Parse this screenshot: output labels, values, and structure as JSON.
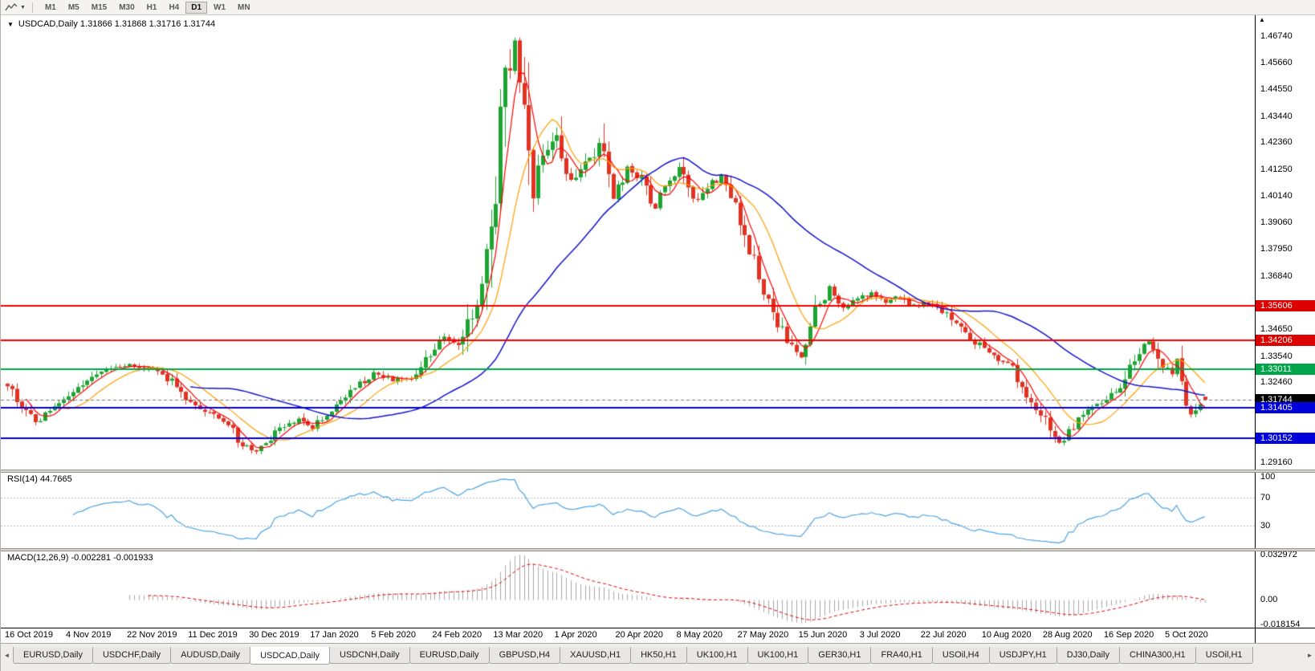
{
  "toolbar": {
    "chart_tool_icon": "line-chart-pencil",
    "dropdown_icon": "▼",
    "timeframes": [
      {
        "label": "M1",
        "active": false
      },
      {
        "label": "M5",
        "active": false
      },
      {
        "label": "M15",
        "active": false
      },
      {
        "label": "M30",
        "active": false
      },
      {
        "label": "H1",
        "active": false
      },
      {
        "label": "H4",
        "active": false
      },
      {
        "label": "D1",
        "active": true
      },
      {
        "label": "W1",
        "active": false
      },
      {
        "label": "MN",
        "active": false
      }
    ]
  },
  "chart": {
    "title_marker": "▼",
    "title": "USDCAD,Daily 1.31866 1.31868 1.31716 1.31744",
    "symbol": "USDCAD",
    "period": "Daily",
    "price_axis": {
      "scroll_marker": "▲",
      "labels": [
        "1.46740",
        "1.45660",
        "1.44550",
        "1.43440",
        "1.42360",
        "1.41250",
        "1.40140",
        "1.39060",
        "1.37950",
        "1.36840",
        "1.34650",
        "1.33540",
        "1.32460",
        "1.29160"
      ],
      "level_labels": [
        {
          "text": "1.35606",
          "bg": "#dd0000"
        },
        {
          "text": "1.34206",
          "bg": "#dd0000"
        },
        {
          "text": "1.33011",
          "bg": "#00a44a"
        },
        {
          "text": "1.31744",
          "bg": "#000000"
        },
        {
          "text": "1.31405",
          "bg": "#0000dd"
        },
        {
          "text": "1.30152",
          "bg": "#0000dd"
        }
      ]
    },
    "date_axis": [
      "16 Oct 2019",
      "4 Nov 2019",
      "22 Nov 2019",
      "11 Dec 2019",
      "30 Dec 2019",
      "17 Jan 2020",
      "5 Feb 2020",
      "24 Feb 2020",
      "13 Mar 2020",
      "1 Apr 2020",
      "20 Apr 2020",
      "8 May 2020",
      "27 May 2020",
      "15 Jun 2020",
      "3 Jul 2020",
      "22 Jul 2020",
      "10 Aug 2020",
      "28 Aug 2020",
      "16 Sep 2020",
      "5 Oct 2020"
    ]
  },
  "indicators": {
    "rsi": {
      "label": "RSI(14) 44.7665",
      "period": 14,
      "value": 44.7665,
      "scale": [
        "100",
        "70",
        "30"
      ],
      "upper_level": 70,
      "lower_level": 30,
      "line_color": "#4da3e0"
    },
    "macd": {
      "label": "MACD(12,26,9) -0.002281 -0.001933",
      "fast": 12,
      "slow": 26,
      "signal": 9,
      "main_value": -0.002281,
      "signal_value": -0.001933,
      "scale": [
        "0.032972",
        "0.00",
        "-0.018154"
      ],
      "scale_max": 0.032972,
      "scale_min": -0.018154,
      "histogram_color": "#a6a6a6",
      "signal_color": "#e00000"
    }
  },
  "chart_data": {
    "type": "candlestick",
    "symbol": "USDCAD",
    "timeframe": "Daily",
    "last_ohlc": {
      "open": 1.31866,
      "high": 1.31868,
      "low": 1.31716,
      "close": 1.31744
    },
    "current_price": 1.31744,
    "y_axis_range": [
      1.2886,
      1.476
    ],
    "candle_count": 256,
    "candles_per_date_label": 13,
    "up_color": "#1ea432",
    "down_color": "#e23222",
    "high_extreme": {
      "index": 108,
      "price": 1.4668
    },
    "low_extremes": [
      {
        "index": 52,
        "price": 1.2952
      },
      {
        "index": 224,
        "price": 1.2992
      }
    ],
    "horizontal_levels": [
      {
        "price": 1.35606,
        "color": "#f00000"
      },
      {
        "price": 1.34206,
        "color": "#f00000"
      },
      {
        "price": 1.33011,
        "color": "#00a44a"
      },
      {
        "price": 1.31405,
        "color": "#0000e0"
      },
      {
        "price": 1.30152,
        "color": "#0000e0"
      }
    ],
    "moving_averages": [
      {
        "type": "sma",
        "period": 5,
        "color": "#ff0000"
      },
      {
        "type": "sma",
        "period": 12,
        "color": "#ff9d00"
      },
      {
        "type": "sma",
        "period": 40,
        "color": "#1414cc"
      }
    ],
    "price_path": [
      [
        0,
        1.3238
      ],
      [
        3,
        1.315
      ],
      [
        6,
        1.3078
      ],
      [
        10,
        1.3145
      ],
      [
        13,
        1.3188
      ],
      [
        17,
        1.3242
      ],
      [
        21,
        1.3298
      ],
      [
        26,
        1.3322
      ],
      [
        30,
        1.3302
      ],
      [
        35,
        1.3252
      ],
      [
        39,
        1.3168
      ],
      [
        43,
        1.3122
      ],
      [
        47,
        1.3065
      ],
      [
        50,
        1.2988
      ],
      [
        52,
        1.2958
      ],
      [
        55,
        1.2988
      ],
      [
        58,
        1.3052
      ],
      [
        62,
        1.3092
      ],
      [
        65,
        1.3062
      ],
      [
        69,
        1.3128
      ],
      [
        73,
        1.3205
      ],
      [
        78,
        1.3288
      ],
      [
        82,
        1.3252
      ],
      [
        86,
        1.3268
      ],
      [
        91,
        1.3382
      ],
      [
        93,
        1.3442
      ],
      [
        96,
        1.3388
      ],
      [
        99,
        1.352
      ],
      [
        102,
        1.3745
      ],
      [
        104,
        1.4005
      ],
      [
        106,
        1.4475
      ],
      [
        108,
        1.464
      ],
      [
        110,
        1.4385
      ],
      [
        112,
        1.4025
      ],
      [
        115,
        1.4205
      ],
      [
        117,
        1.4258
      ],
      [
        120,
        1.4088
      ],
      [
        123,
        1.4158
      ],
      [
        126,
        1.4205
      ],
      [
        129,
        1.4012
      ],
      [
        132,
        1.4128
      ],
      [
        135,
        1.4082
      ],
      [
        138,
        1.3962
      ],
      [
        141,
        1.4088
      ],
      [
        143,
        1.4128
      ],
      [
        146,
        1.3992
      ],
      [
        149,
        1.4058
      ],
      [
        152,
        1.4088
      ],
      [
        155,
        1.3972
      ],
      [
        158,
        1.3792
      ],
      [
        161,
        1.3632
      ],
      [
        164,
        1.3492
      ],
      [
        167,
        1.3382
      ],
      [
        169,
        1.3338
      ],
      [
        172,
        1.3538
      ],
      [
        175,
        1.3638
      ],
      [
        178,
        1.3562
      ],
      [
        181,
        1.3582
      ],
      [
        184,
        1.3618
      ],
      [
        187,
        1.3582
      ],
      [
        190,
        1.3598
      ],
      [
        193,
        1.3562
      ],
      [
        196,
        1.3578
      ],
      [
        199,
        1.3542
      ],
      [
        202,
        1.3482
      ],
      [
        205,
        1.3422
      ],
      [
        208,
        1.3388
      ],
      [
        211,
        1.3348
      ],
      [
        214,
        1.3298
      ],
      [
        217,
        1.3182
      ],
      [
        220,
        1.3122
      ],
      [
        222,
        1.3042
      ],
      [
        224,
        1.2998
      ],
      [
        226,
        1.3042
      ],
      [
        228,
        1.3088
      ],
      [
        230,
        1.3128
      ],
      [
        232,
        1.3158
      ],
      [
        234,
        1.3178
      ],
      [
        236,
        1.3208
      ],
      [
        238,
        1.3258
      ],
      [
        240,
        1.3338
      ],
      [
        242,
        1.3415
      ],
      [
        244,
        1.3388
      ],
      [
        246,
        1.3308
      ],
      [
        248,
        1.3292
      ],
      [
        249,
        1.3335
      ],
      [
        251,
        1.318
      ],
      [
        252,
        1.3105
      ],
      [
        253,
        1.315
      ],
      [
        255,
        1.31744
      ]
    ]
  },
  "tabbar": {
    "left_arrow": "◄",
    "right_arrow": "►",
    "tabs": [
      {
        "label": "EURUSD,Daily",
        "active": false
      },
      {
        "label": "USDCHF,Daily",
        "active": false
      },
      {
        "label": "AUDUSD,Daily",
        "active": false
      },
      {
        "label": "USDCAD,Daily",
        "active": true
      },
      {
        "label": "USDCNH,Daily",
        "active": false
      },
      {
        "label": "EURUSD,Daily",
        "active": false
      },
      {
        "label": "GBPUSD,H4",
        "active": false
      },
      {
        "label": "XAUUSD,H1",
        "active": false
      },
      {
        "label": "HK50,H1",
        "active": false
      },
      {
        "label": "UK100,H1",
        "active": false
      },
      {
        "label": "UK100,H1",
        "active": false
      },
      {
        "label": "GER30,H1",
        "active": false
      },
      {
        "label": "FRA40,H1",
        "active": false
      },
      {
        "label": "USOil,H4",
        "active": false
      },
      {
        "label": "USDJPY,H1",
        "active": false
      },
      {
        "label": "DJ30,Daily",
        "active": false
      },
      {
        "label": "CHINA300,H1",
        "active": false
      },
      {
        "label": "USOil,H1",
        "active": false
      }
    ]
  }
}
